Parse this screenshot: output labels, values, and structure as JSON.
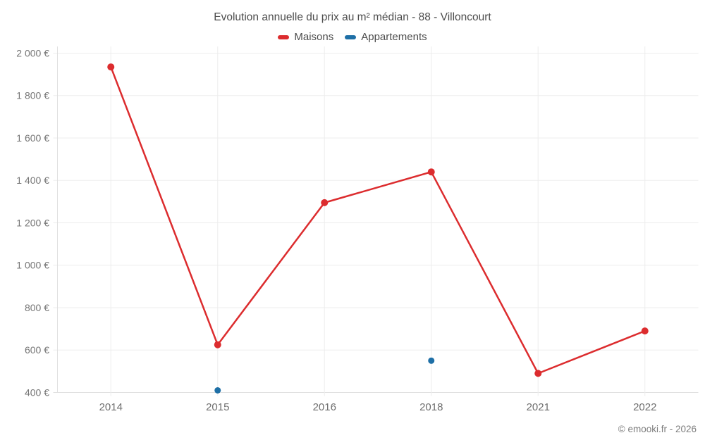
{
  "header": {
    "title": "Evolution annuelle du prix au m² médian - 88 - Villoncourt"
  },
  "footer": {
    "credit": "© emooki.fr - 2026"
  },
  "colors": {
    "maisons": "#dc2c2e",
    "appartements": "#1e6fa6",
    "grid": "#ededed",
    "axis": "#e0e0e0",
    "tick_text": "#757575",
    "title_text": "#4d4d4d"
  },
  "chart_data": {
    "type": "line",
    "title": "Evolution annuelle du prix au m² médian - 88 - Villoncourt",
    "categories": [
      "2014",
      "2015",
      "2016",
      "2018",
      "2021",
      "2022"
    ],
    "series": [
      {
        "name": "Maisons",
        "color": "#dc2c2e",
        "marker_radius": 5,
        "line_width": 2.5,
        "values": [
          1935,
          625,
          1295,
          1440,
          490,
          690
        ]
      },
      {
        "name": "Appartements",
        "color": "#1e6fa6",
        "marker_radius": 4.5,
        "line_width": 2.5,
        "values": [
          null,
          410,
          null,
          550,
          null,
          null
        ]
      }
    ],
    "xlabel": "",
    "ylabel": "",
    "ylim": [
      400,
      2000
    ],
    "ytick_step": 200,
    "ytick_labels": [
      "400 €",
      "600 €",
      "800 €",
      "1 000 €",
      "1 200 €",
      "1 400 €",
      "1 600 €",
      "1 800 €",
      "2 000 €"
    ],
    "grid": true,
    "legend_position": "top"
  }
}
